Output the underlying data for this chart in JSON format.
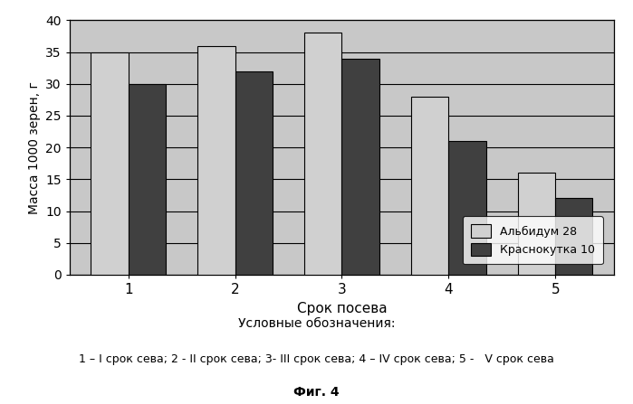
{
  "categories": [
    "1",
    "2",
    "3",
    "4",
    "5"
  ],
  "series1_label": "Альбидум 28",
  "series2_label": "Краснокутка 10",
  "series1_values": [
    35,
    36,
    38,
    28,
    16
  ],
  "series2_values": [
    30,
    32,
    34,
    21,
    12
  ],
  "series1_color": "#d0d0d0",
  "series2_color": "#404040",
  "ylabel": "Масса 1000 зерен, г",
  "xlabel": "Срок посева",
  "ylim": [
    0,
    40
  ],
  "yticks": [
    0,
    5,
    10,
    15,
    20,
    25,
    30,
    35,
    40
  ],
  "plot_bg_color": "#c8c8c8",
  "caption_line1": "Условные обозначения:",
  "caption_line2": "1 – I срок сева; 2 - II срок сева; 3- III срок сева; 4 – IV срок сева; 5 -   V срок сева",
  "caption_line3": "Фиг. 4",
  "bar_width": 0.35,
  "figsize": [
    6.99,
    4.47
  ],
  "dpi": 100
}
